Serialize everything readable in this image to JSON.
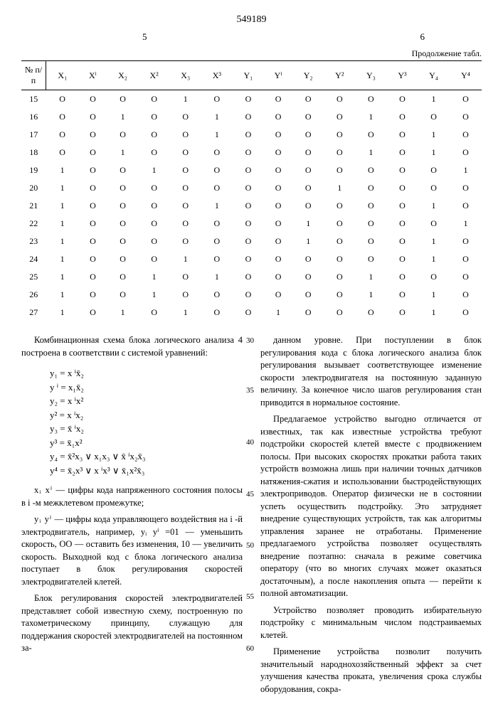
{
  "doc_number": "549189",
  "page_left": "5",
  "page_right": "6",
  "cont_label": "Продолжение табл.",
  "table": {
    "headers": [
      "№ п/п",
      "X₁",
      "Xⁱ",
      "X₂",
      "X²",
      "X₃",
      "X³",
      "Y₁",
      "Yⁱ",
      "Y₂",
      "Y²",
      "Y₃",
      "Y³",
      "Y₄",
      "Y⁴"
    ],
    "rows": [
      [
        "15",
        "O",
        "O",
        "O",
        "O",
        "1",
        "O",
        "O",
        "O",
        "O",
        "O",
        "O",
        "O",
        "1",
        "O"
      ],
      [
        "16",
        "O",
        "O",
        "1",
        "O",
        "O",
        "1",
        "O",
        "O",
        "O",
        "O",
        "1",
        "O",
        "O",
        "O"
      ],
      [
        "17",
        "O",
        "O",
        "O",
        "O",
        "O",
        "1",
        "O",
        "O",
        "O",
        "O",
        "O",
        "O",
        "1",
        "O"
      ],
      [
        "18",
        "O",
        "O",
        "1",
        "O",
        "O",
        "O",
        "O",
        "O",
        "O",
        "O",
        "1",
        "O",
        "1",
        "O"
      ],
      [
        "19",
        "1",
        "O",
        "O",
        "1",
        "O",
        "O",
        "O",
        "O",
        "O",
        "O",
        "O",
        "O",
        "O",
        "1"
      ],
      [
        "20",
        "1",
        "O",
        "O",
        "O",
        "O",
        "O",
        "O",
        "O",
        "O",
        "1",
        "O",
        "O",
        "O",
        "O"
      ],
      [
        "21",
        "1",
        "O",
        "O",
        "O",
        "O",
        "1",
        "O",
        "O",
        "O",
        "O",
        "O",
        "O",
        "1",
        "O"
      ],
      [
        "22",
        "1",
        "O",
        "O",
        "O",
        "O",
        "O",
        "O",
        "O",
        "1",
        "O",
        "O",
        "O",
        "O",
        "1"
      ],
      [
        "23",
        "1",
        "O",
        "O",
        "O",
        "O",
        "O",
        "O",
        "O",
        "1",
        "O",
        "O",
        "O",
        "1",
        "O"
      ],
      [
        "24",
        "1",
        "O",
        "O",
        "O",
        "1",
        "O",
        "O",
        "O",
        "O",
        "O",
        "O",
        "O",
        "1",
        "O"
      ],
      [
        "25",
        "1",
        "O",
        "O",
        "1",
        "O",
        "1",
        "O",
        "O",
        "O",
        "O",
        "1",
        "O",
        "O",
        "O"
      ],
      [
        "26",
        "1",
        "O",
        "O",
        "1",
        "O",
        "O",
        "O",
        "O",
        "O",
        "O",
        "1",
        "O",
        "1",
        "O"
      ],
      [
        "27",
        "1",
        "O",
        "1",
        "O",
        "1",
        "O",
        "O",
        "1",
        "O",
        "O",
        "O",
        "O",
        "1",
        "O"
      ]
    ]
  },
  "left": {
    "p1": "Комбинационная схема блока логического анализа 4 построена в соответствии с системой уравнений:",
    "eq": "y₁ = x ⁱx̄₂\ny ⁱ = x₁x̄₂\ny₂ = x ⁱx²\ny² = x ⁱx₂\ny₃ = x̄ ⁱx₂\ny³ = x̄₁x²\ny₄ = x̄²x₃ ∨ x₁x₃ ∨ x̄ ⁱx₂x̄₃\ny⁴ = x̄₂x³ ∨ x ⁱx³ ∨ x̄₁x²x̄₃",
    "def1_lead": "xᵢ xⁱ",
    "def1": " — цифры кода напряженного состояния полосы в i -м межклетевом промежутке;",
    "def2_lead": "yᵢ yⁱ",
    "def2": " — цифры кода управляющего воздействия на i -й электродвигатель, например, yᵢ yⁱ =01 — уменьшить скорость, ОО — оставить без изменения, 10 — увеличить скорость. Выходной код с блока логического анализа поступает в блок регулирования скоростей электродвигателей клетей.",
    "p3": "Блок регулирования скоростей электродвигателей представляет собой известную схему, построенную по тахометрическому принципу, служащую для поддержания скоростей электродвигателей на постоянном за-"
  },
  "right": {
    "p1": "данном уровне. При поступлении в блок регулирования кода с блока логического анализа блок регулирования вызывает соответствующее изменение скорости электродвигателя на постоянную заданную величину. За конечное число шагов регулирования стан приводится в нормальное состояние.",
    "p2": "Предлагаемое устройство выгодно отличается от известных, так как известные устройства требуют подстройки скоростей клетей вместе с продвижением полосы. При высоких скоростях прокатки работа таких устройств возможна лишь при наличии точных датчиков натяжения-сжатия и использовании быстродействующих электроприводов. Оператор физически не в состоянии успеть осуществить подстройку. Это затрудняет внедрение существующих устройств, так как алгоритмы управления заранее не отработаны. Применение предлагаемого устройства позволяет осуществлять внедрение поэтапно: сначала в режиме советчика оператору (что во многих случаях может оказаться достаточным), а после накопления опыта — перейти к полной автоматизации.",
    "p3": "Устройство позволяет проводить избирательную подстройку с минимальным числом подстраиваемых клетей.",
    "p4": "Применение устройства позволит получить значительный народнохозяйственный эффект за счет улучшения качества проката, увеличения срока службы оборудования, сокра-"
  },
  "line_numbers": {
    "l30": "30",
    "l35": "35",
    "l40": "40",
    "l45": "45",
    "l50": "50",
    "l55": "55",
    "l60": "60"
  }
}
